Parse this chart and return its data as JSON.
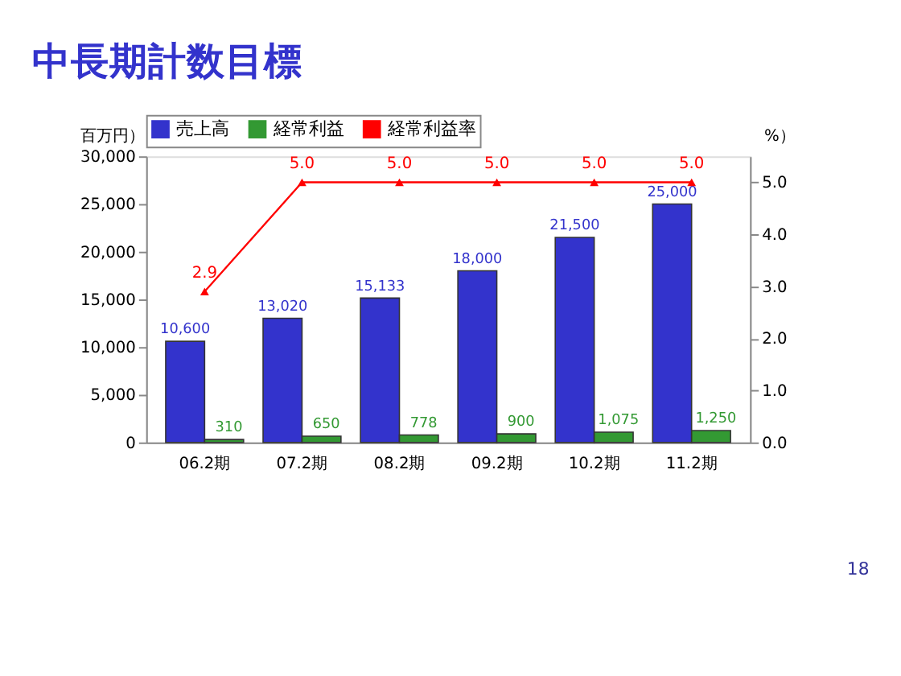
{
  "chart_data": {
    "type": "bar",
    "title": "中長期計数目標",
    "ylabel": "百万円）",
    "y2label": "%）",
    "categories": [
      "06.2期",
      "07.2期",
      "08.2期",
      "09.2期",
      "10.2期",
      "11.2期"
    ],
    "series": [
      {
        "name": "売上高",
        "color": "#3333cc",
        "values": [
          10600,
          13020,
          15133,
          18000,
          21500,
          25000
        ],
        "value_labels": [
          "10,600",
          "13,020",
          "15,133",
          "18,000",
          "21,500",
          "25,000"
        ]
      },
      {
        "name": "経常利益",
        "color": "#339933",
        "values": [
          310,
          650,
          778,
          900,
          1075,
          1250
        ],
        "value_labels": [
          "310",
          "650",
          "778",
          "900",
          "1,075",
          "1,250"
        ]
      },
      {
        "name": "経常利益率",
        "type": "line",
        "axis": "y2",
        "color": "#ff0000",
        "marker": "triangle",
        "line_style": "solid",
        "values": [
          2.9,
          5.0,
          5.0,
          5.0,
          5.0,
          5.0
        ],
        "value_labels": [
          "2.9",
          "5.0",
          "5.0",
          "5.0",
          "5.0",
          "5.0"
        ]
      }
    ],
    "ylim": [
      0,
      30000
    ],
    "yticks": [
      0,
      {
        "value": 5000,
        "label": "5,000"
      },
      {
        "value": 10000,
        "label": "10,000"
      },
      {
        "value": 15000,
        "label": "15,000"
      },
      {
        "value": 20000,
        "label": "20,000"
      },
      {
        "value": 25000,
        "label": "25,000"
      },
      {
        "value": 30000,
        "label": "30,000"
      }
    ],
    "y2lim": [
      0,
      5.5
    ],
    "y2ticks": [
      {
        "value": 0,
        "label": "0.0"
      },
      {
        "value": 1,
        "label": "1.0"
      },
      {
        "value": 2,
        "label": "2.0"
      },
      {
        "value": 3,
        "label": "3.0"
      },
      {
        "value": 4,
        "label": "4.0"
      },
      {
        "value": 5,
        "label": "5.0"
      }
    ],
    "grid": false,
    "legend": "top",
    "annotations": [
      "18"
    ]
  }
}
